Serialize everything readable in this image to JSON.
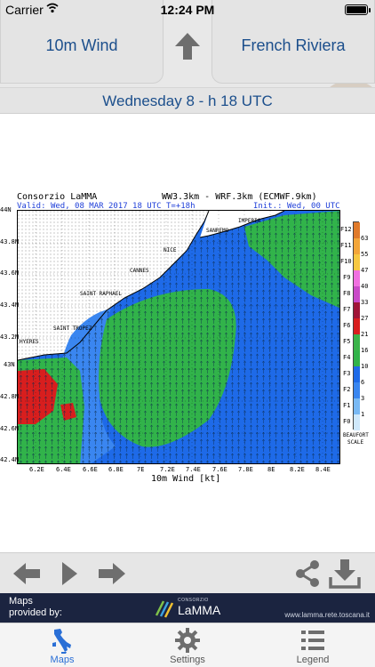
{
  "status_bar": {
    "carrier": "Carrier",
    "time": "12:24 PM"
  },
  "header": {
    "left_button": "10m Wind",
    "right_button": "French Riviera",
    "up_icon": "up-arrow-icon"
  },
  "date_band": "Wednesday 8 - h 18 UTC",
  "map": {
    "title_left": "Consorzio LaMMA",
    "title_right": "WW3.3km - WRF.3km (ECMWF.9km)",
    "valid_label": "Valid:",
    "valid_value": "Wed, 08 MAR 2017  18 UTC",
    "step": "T=+18h",
    "init_label": "Init.:",
    "init_value": "Wed, 00 UTC",
    "y_ticks": [
      "44N",
      "43.8N",
      "43.6N",
      "43.4N",
      "43.2N",
      "43N",
      "42.8N",
      "42.6N",
      "42.4N"
    ],
    "x_ticks": [
      "6.2E",
      "6.4E",
      "6.6E",
      "6.8E",
      "7E",
      "7.2E",
      "7.4E",
      "7.6E",
      "7.8E",
      "8E",
      "8.2E",
      "8.4E"
    ],
    "xlabel": "10m Wind [kt]",
    "places": [
      "IMPERIA",
      "SANREMO",
      "NICE",
      "CANNES",
      "SAINT RAPHAEL",
      "SAINT TROPEZ",
      "HYERES"
    ],
    "colorbar": {
      "force_labels": [
        "F12",
        "F11",
        "F10",
        "F9",
        "F8",
        "F7",
        "F6",
        "F5",
        "F4",
        "F3",
        "F2",
        "F1",
        "F0"
      ],
      "kt_labels": [
        "63",
        "55",
        "47",
        "40",
        "33",
        "27",
        "21",
        "16",
        "10",
        "6",
        "3",
        "1"
      ],
      "colors": [
        "#e07a2a",
        "#f3a63a",
        "#f7c842",
        "#f070e0",
        "#c94ac8",
        "#a01538",
        "#d81e1e",
        "#3bb44a",
        "#31b34a",
        "#1e6ae8",
        "#3a86f0",
        "#79b9f4",
        "#cfe8fb"
      ],
      "caption_top": "BEAUFORT",
      "caption_bottom": "SCALE"
    }
  },
  "toolbar": {
    "back": "back-arrow-icon",
    "play": "play-icon",
    "forward": "forward-arrow-icon",
    "share": "share-icon",
    "download": "download-icon"
  },
  "credits": {
    "line1": "Maps",
    "line2": "provided by:",
    "logo_small": "CONSORZIO",
    "logo_text": "LaMMA",
    "url": "www.lamma.rete.toscana.it"
  },
  "tabs": [
    {
      "label": "Maps",
      "icon": "italy-map-icon",
      "active": true
    },
    {
      "label": "Settings",
      "icon": "gear-icon",
      "active": false
    },
    {
      "label": "Legend",
      "icon": "list-icon",
      "active": false
    }
  ]
}
